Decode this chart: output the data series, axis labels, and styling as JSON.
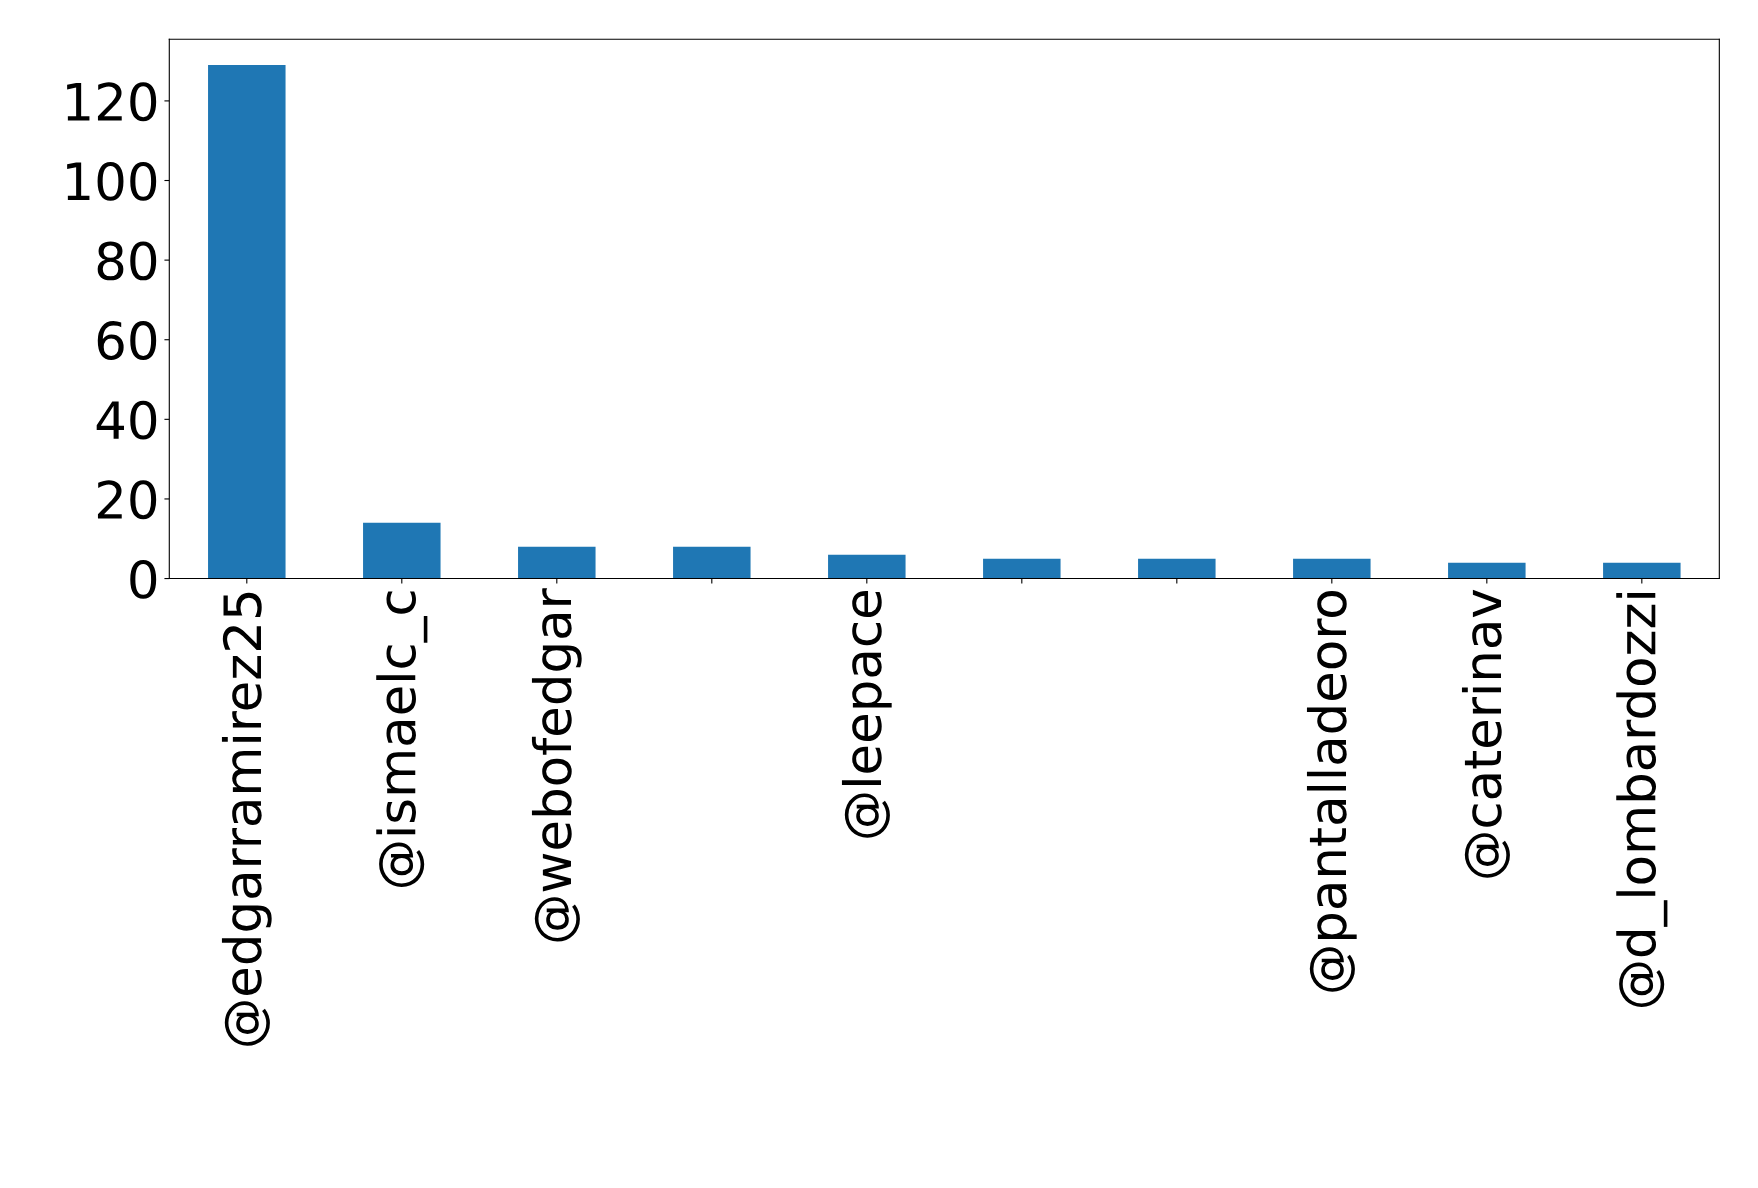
{
  "chart_data": {
    "type": "bar",
    "categories": [
      "@edgarramirez25",
      "@ismaelc_c",
      "@webofedgar",
      null,
      "@leepace",
      null,
      null,
      "@pantalladeoro",
      "@caterinav",
      "@d_lombardozzi"
    ],
    "values": [
      129,
      14,
      8,
      8,
      6,
      5,
      5,
      5,
      4,
      4
    ],
    "color": "#1f77b4",
    "ylim": [
      0,
      135.5
    ],
    "yticks": [
      0,
      20,
      40,
      60,
      80,
      100,
      120
    ],
    "grid": false
  }
}
